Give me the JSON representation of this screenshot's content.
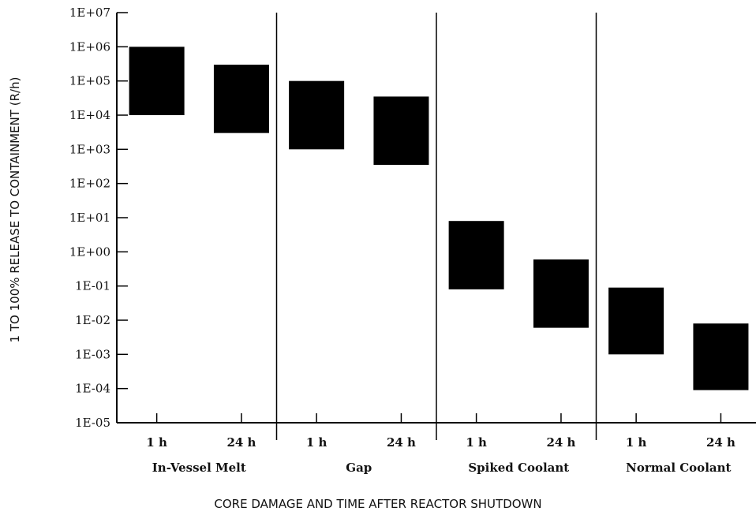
{
  "chart_data": {
    "type": "bar",
    "title": "",
    "xlabel": "CORE DAMAGE AND TIME AFTER REACTOR SHUTDOWN",
    "ylabel": "1 TO 100% RELEASE TO CONTAINMENT (R/h)",
    "yscale": "log",
    "ylim": [
      1e-05,
      10000000.0
    ],
    "y_ticks": [
      {
        "value": 10000000.0,
        "label": "1E+07"
      },
      {
        "value": 1000000.0,
        "label": "1E+06"
      },
      {
        "value": 100000.0,
        "label": "1E+05"
      },
      {
        "value": 10000.0,
        "label": "1E+04"
      },
      {
        "value": 1000.0,
        "label": "1E+03"
      },
      {
        "value": 100.0,
        "label": "1E+02"
      },
      {
        "value": 10.0,
        "label": "1E+01"
      },
      {
        "value": 1.0,
        "label": "1E+00"
      },
      {
        "value": 0.1,
        "label": "1E-01"
      },
      {
        "value": 0.01,
        "label": "1E-02"
      },
      {
        "value": 0.001,
        "label": "1E-03"
      },
      {
        "value": 0.0001,
        "label": "1E-04"
      },
      {
        "value": 1e-05,
        "label": "1E-05"
      }
    ],
    "groups": [
      {
        "name": "In-Vessel Melt",
        "bars": [
          {
            "label": "1 h",
            "low": 10000.0,
            "high": 1000000.0
          },
          {
            "label": "24 h",
            "low": 3000.0,
            "high": 300000.0
          }
        ]
      },
      {
        "name": "Gap",
        "bars": [
          {
            "label": "1 h",
            "low": 1000.0,
            "high": 100000.0
          },
          {
            "label": "24 h",
            "low": 350.0,
            "high": 35000.0
          }
        ]
      },
      {
        "name": "Spiked Coolant",
        "bars": [
          {
            "label": "1 h",
            "low": 0.08,
            "high": 8.0
          },
          {
            "label": "24 h",
            "low": 0.006,
            "high": 0.6
          }
        ]
      },
      {
        "name": "Normal Coolant",
        "bars": [
          {
            "label": "1 h",
            "low": 0.001,
            "high": 0.09
          },
          {
            "label": "24 h",
            "low": 9e-05,
            "high": 0.008
          }
        ]
      }
    ],
    "bar_color": "#000000",
    "grid": false
  }
}
